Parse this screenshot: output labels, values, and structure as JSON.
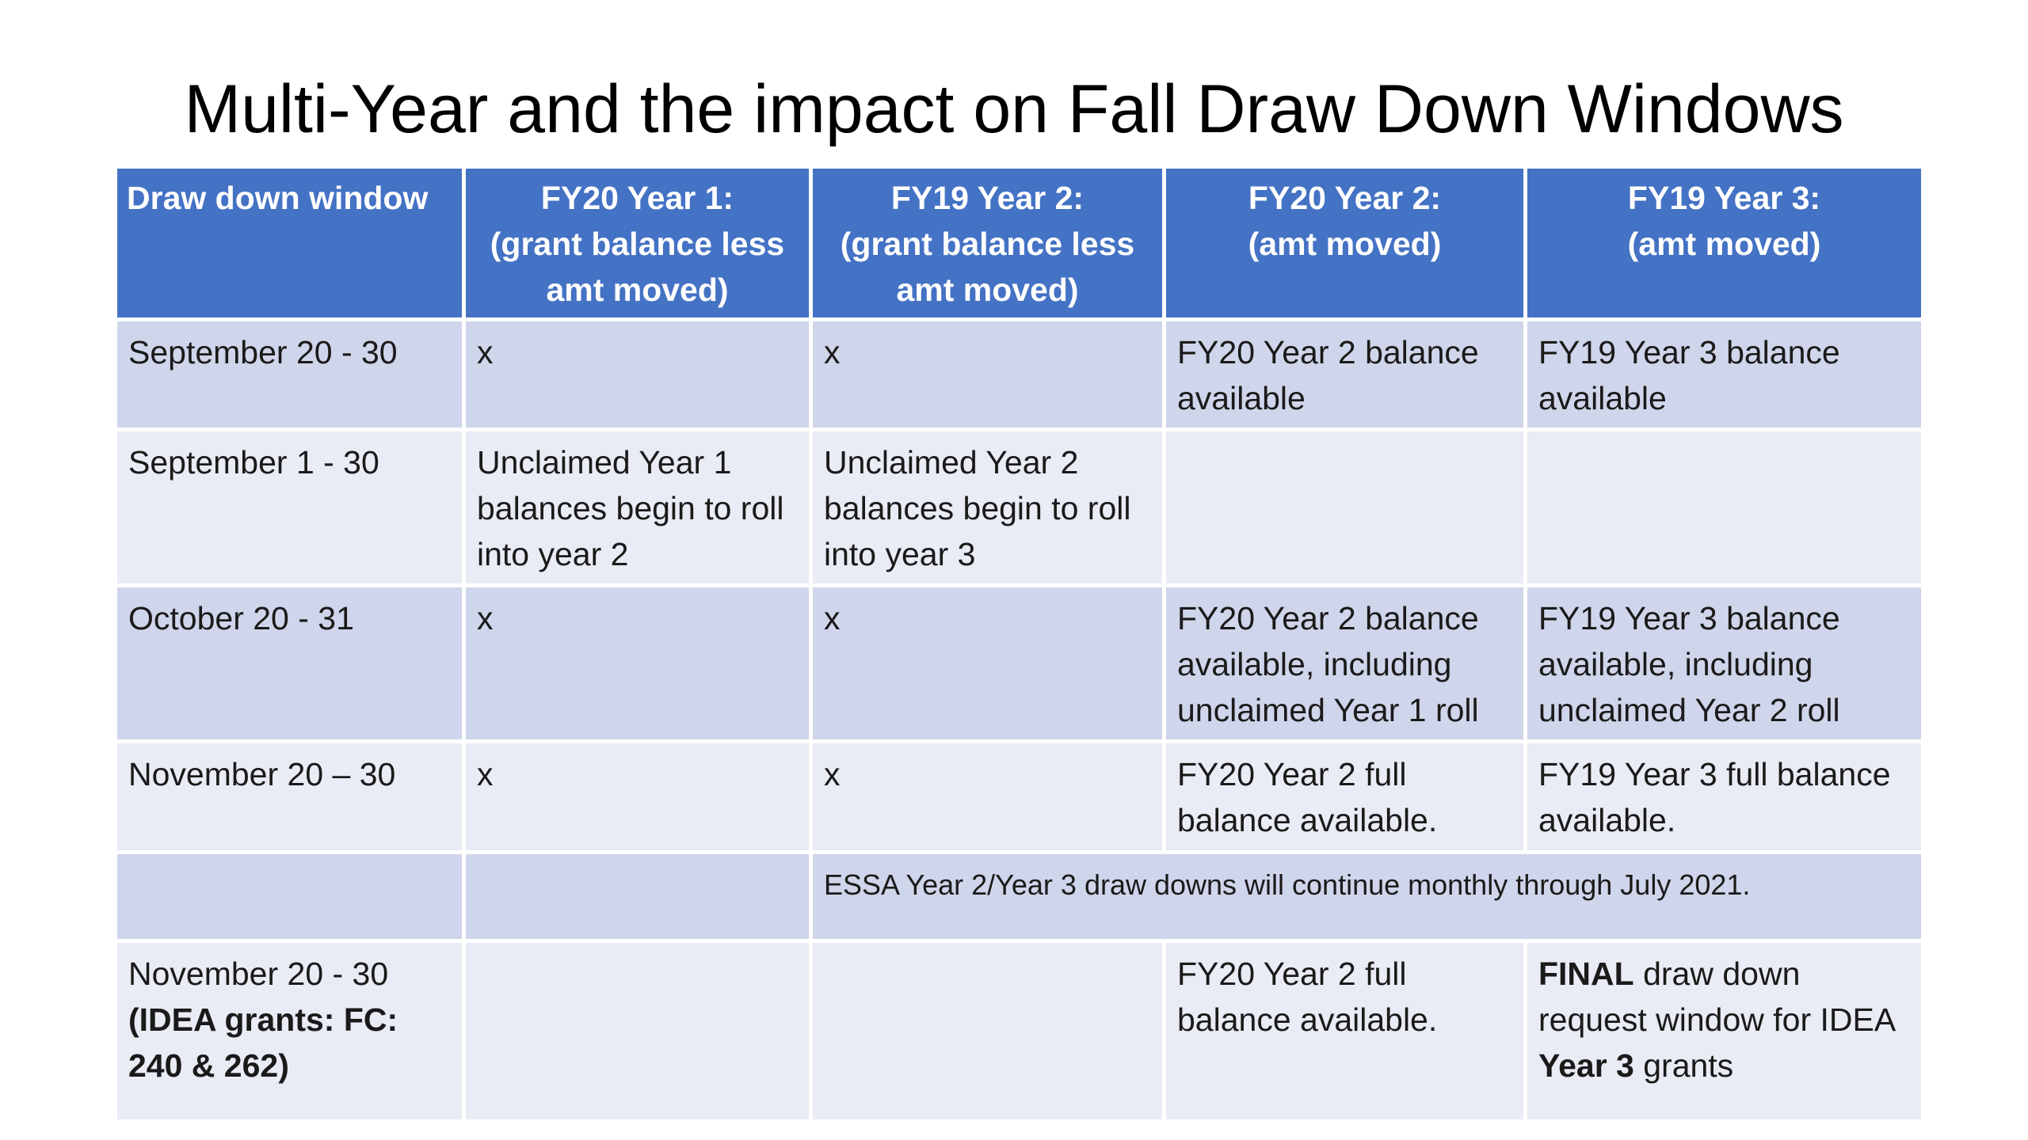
{
  "slide": {
    "title": "Multi-Year and the impact on Fall Draw Down Windows"
  },
  "table": {
    "headers": [
      {
        "line1": "Draw down window",
        "line2": "",
        "line3": ""
      },
      {
        "line1": "FY20 Year 1:",
        "line2": "(grant balance less",
        "line3": "amt moved)"
      },
      {
        "line1": "FY19 Year 2:",
        "line2": "(grant balance less",
        "line3": "amt moved)"
      },
      {
        "line1": "FY20 Year 2:",
        "line2": "(amt moved)",
        "line3": ""
      },
      {
        "line1": "FY19 Year 3:",
        "line2": "(amt moved)",
        "line3": ""
      }
    ],
    "rows": [
      {
        "window": "September 20 - 30",
        "fy20_year1": "x",
        "fy19_year2": "x",
        "fy20_year2": "FY20 Year 2 balance available",
        "fy19_year3": "FY19 Year 3 balance available"
      },
      {
        "window": "September 1 - 30",
        "fy20_year1": "Unclaimed Year 1 balances begin to roll into year 2",
        "fy19_year2": "Unclaimed Year 2 balances begin to roll into year 3",
        "fy20_year2": "",
        "fy19_year3": ""
      },
      {
        "window": "October 20 - 31",
        "fy20_year1": "x",
        "fy19_year2": "x",
        "fy20_year2": "FY20 Year 2 balance available, including unclaimed Year 1 roll",
        "fy19_year3": "FY19 Year 3 balance available, including unclaimed Year 2 roll"
      },
      {
        "window": "November 20 – 30",
        "fy20_year1": "x",
        "fy19_year2": "x",
        "fy20_year2": "FY20 Year 2 full balance available.",
        "fy19_year3": "FY19 Year 3 full balance available."
      },
      {
        "window": "",
        "fy20_year1": "",
        "note": "ESSA Year 2/Year 3 draw downs will continue monthly through July 2021."
      },
      {
        "window_line1": "November 20 - 30",
        "window_bold": "(IDEA grants: FC: 240 & 262)",
        "fy20_year1": "",
        "fy19_year2": "",
        "fy20_year2": "FY20 Year 2 full balance available.",
        "fy19_year3_bold1": "FINAL",
        "fy19_year3_part1": " draw down request window for IDEA ",
        "fy19_year3_bold2": "Year 3",
        "fy19_year3_part2": " grants"
      }
    ]
  },
  "colors": {
    "header_bg": "#4472c4",
    "header_text": "#ffffff",
    "row_odd_bg": "#cfd5ea",
    "row_even_bg": "#e9ebf5"
  }
}
